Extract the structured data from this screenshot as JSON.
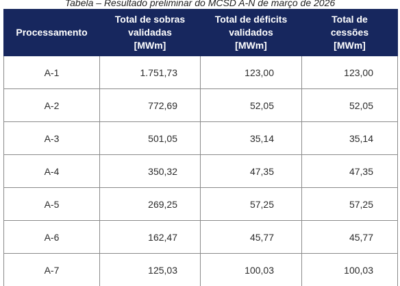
{
  "caption": "Tabela – Resultado preliminar do MCSD A-N de março de 2026",
  "table": {
    "headers": [
      {
        "lines": [
          "Processamento"
        ]
      },
      {
        "lines": [
          "Total de sobras",
          "validadas",
          "[MWm]"
        ]
      },
      {
        "lines": [
          "Total de déficits",
          "validados",
          "[MWm]"
        ]
      },
      {
        "lines": [
          "Total de",
          "cessões",
          "[MWm]"
        ]
      }
    ],
    "rows": [
      [
        "A-1",
        "1.751,73",
        "123,00",
        "123,00"
      ],
      [
        "A-2",
        "772,69",
        "52,05",
        "52,05"
      ],
      [
        "A-3",
        "501,05",
        "35,14",
        "35,14"
      ],
      [
        "A-4",
        "350,32",
        "47,35",
        "47,35"
      ],
      [
        "A-5",
        "269,25",
        "57,25",
        "57,25"
      ],
      [
        "A-6",
        "162,47",
        "45,77",
        "45,77"
      ],
      [
        "A-7",
        "125,03",
        "100,03",
        "100,03"
      ]
    ]
  }
}
